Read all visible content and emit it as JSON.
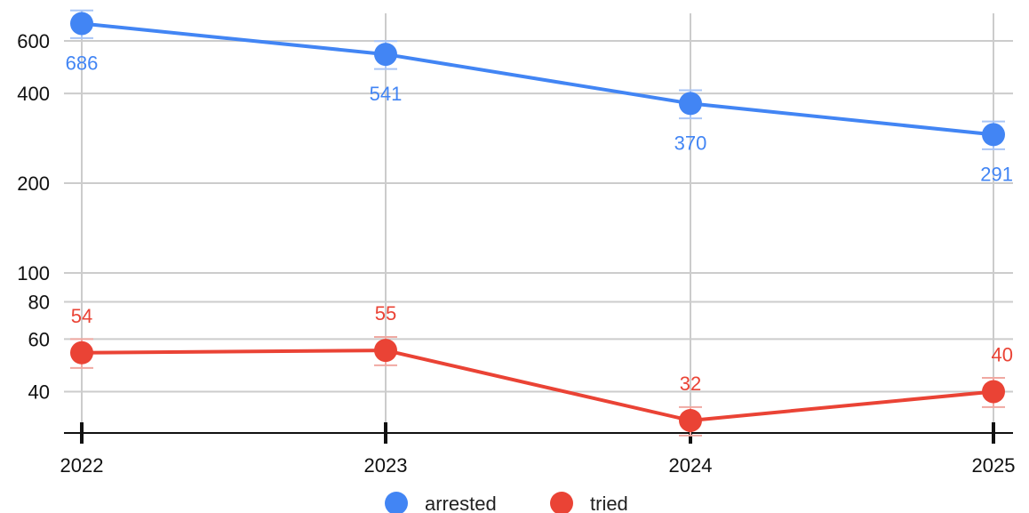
{
  "chart_data": {
    "type": "line",
    "title": "",
    "xlabel": "",
    "ylabel": "",
    "y_scale": "log",
    "x": [
      "2022",
      "2023",
      "2024",
      "2025"
    ],
    "y_ticks": [
      40,
      60,
      80,
      100,
      200,
      400,
      600
    ],
    "ylim": [
      31,
      800
    ],
    "grid": true,
    "legend_position": "bottom",
    "series": [
      {
        "name": "arrested",
        "color": "#4285f4",
        "values": [
          686,
          541,
          370,
          291
        ],
        "error_low": [
          613,
          483,
          330,
          260
        ],
        "error_high": [
          759,
          599,
          410,
          322
        ]
      },
      {
        "name": "tried",
        "color": "#ea4335",
        "values": [
          54,
          55,
          32,
          40
        ],
        "error_low": [
          48,
          49,
          28.5,
          35.5
        ],
        "error_high": [
          60,
          61,
          35.5,
          44.5
        ]
      }
    ]
  }
}
